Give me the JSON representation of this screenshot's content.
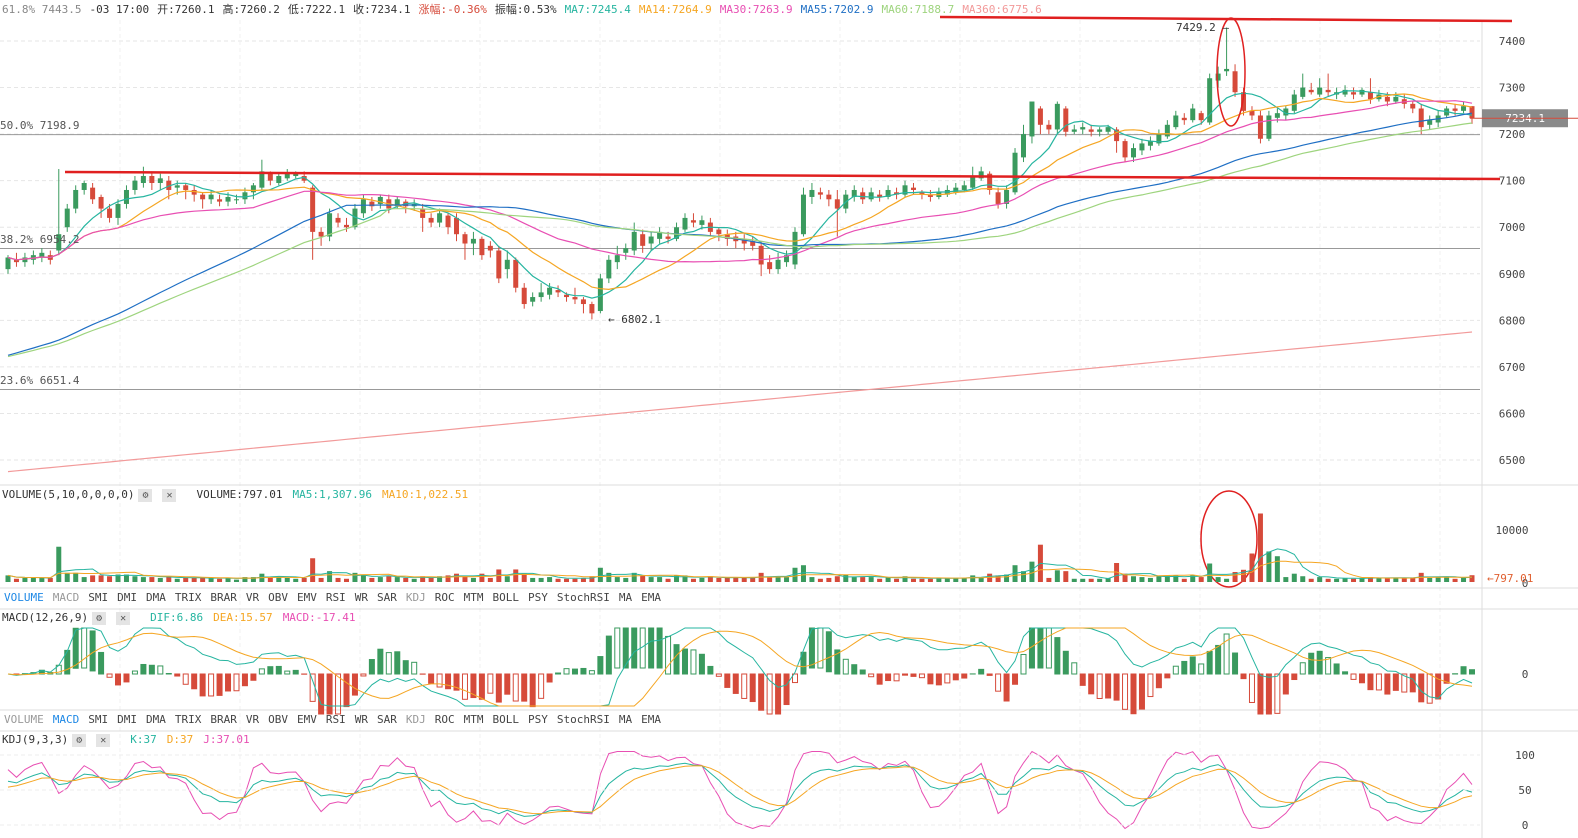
{
  "header": {
    "fib_top": "61.8% 7443.5",
    "time": "-03 17:00",
    "open": "开:7260.1",
    "high": "高:7260.2",
    "low": "低:7222.1",
    "close": "收:7234.1",
    "change": "涨幅:-0.36%",
    "amplitude": "振幅:0.53%",
    "ma7": "MA7:7245.4",
    "ma14": "MA14:7264.9",
    "ma30": "MA30:7263.9",
    "ma55": "MA55:7202.9",
    "ma60": "MA60:7188.7",
    "ma360": "MA360:6775.6"
  },
  "colors": {
    "up": "#3a9a5e",
    "down": "#d64a3a",
    "ma7": "#26b5a0",
    "ma14": "#f5a623",
    "ma30": "#e84fb3",
    "ma55": "#1f6fc4",
    "ma60": "#9ed47e",
    "ma360": "#f29a9a",
    "annotation": "#e02020",
    "macd_neg": "#d64a3a",
    "macd_pos": "#3a9a5e",
    "dif": "#26b5a0",
    "dea": "#f5a623",
    "kdj_j": "#e84fb3"
  },
  "fib_levels": [
    {
      "label": "50.0% 7198.9",
      "value": 7198.9
    },
    {
      "label": "38.2% 6954.2",
      "value": 6954.2
    },
    {
      "label": "23.6% 6651.4",
      "value": 6651.4
    }
  ],
  "price_annotations": {
    "high_label": "7429.2",
    "low_label": "6802.1",
    "current_price": "7234.1",
    "volume_current": "797.01"
  },
  "volume_panel": {
    "title": "VOLUME(5,10,0,0,0,0)",
    "volume": "VOLUME:797.01",
    "ma5": "MA5:1,307.96",
    "ma10": "MA10:1,022.51"
  },
  "macd_panel": {
    "title": "MACD(12,26,9)",
    "dif": "DIF:6.86",
    "dea": "DEA:15.57",
    "macd": "MACD:-17.41"
  },
  "kdj_panel": {
    "title": "KDJ(9,3,3)",
    "k": "K:37",
    "d": "D:37",
    "j": "J:37.01"
  },
  "indicator_tabs": [
    "VOLUME",
    "MACD",
    "SMI",
    "DMI",
    "DMA",
    "TRIX",
    "BRAR",
    "VR",
    "OBV",
    "EMV",
    "RSI",
    "WR",
    "SAR",
    "KDJ",
    "ROC",
    "MTM",
    "BOLL",
    "PSY",
    "StochRSI",
    "MA",
    "EMA"
  ],
  "tab_row_1_active": "VOLUME",
  "tab_row_2_active": "MACD",
  "chart_data": {
    "type": "candlestick",
    "y_axis_ticks": [
      7400,
      7300,
      7200,
      7100,
      7000,
      6900,
      6800,
      6700,
      6600,
      6500
    ],
    "ylim": [
      6460,
      7445
    ],
    "volume_ticks": [
      10000,
      0
    ],
    "macd_ticks": [
      0
    ],
    "kdj_ticks": [
      100,
      50,
      0
    ],
    "candles": [
      [
        6910,
        6935,
        6900,
        6940
      ],
      [
        6930,
        6925,
        6915,
        6945
      ],
      [
        6925,
        6935,
        6915,
        6945
      ],
      [
        6930,
        6940,
        6920,
        6950
      ],
      [
        6935,
        6945,
        6925,
        6955
      ],
      [
        6940,
        6930,
        6920,
        6950
      ],
      [
        6950,
        6985,
        6940,
        7125
      ],
      [
        7000,
        7040,
        6990,
        7050
      ],
      [
        7040,
        7080,
        7030,
        7090
      ],
      [
        7080,
        7095,
        7070,
        7100
      ],
      [
        7085,
        7060,
        7050,
        7095
      ],
      [
        7065,
        7040,
        7020,
        7070
      ],
      [
        7040,
        7020,
        7010,
        7050
      ],
      [
        7020,
        7050,
        7005,
        7060
      ],
      [
        7050,
        7080,
        7040,
        7090
      ],
      [
        7080,
        7100,
        7070,
        7110
      ],
      [
        7095,
        7110,
        7085,
        7130
      ],
      [
        7110,
        7095,
        7080,
        7120
      ],
      [
        7095,
        7105,
        7080,
        7115
      ],
      [
        7100,
        7080,
        7060,
        7110
      ],
      [
        7085,
        7090,
        7070,
        7100
      ],
      [
        7090,
        7080,
        7060,
        7095
      ],
      [
        7080,
        7070,
        7055,
        7090
      ],
      [
        7070,
        7060,
        7040,
        7075
      ],
      [
        7060,
        7070,
        7050,
        7080
      ],
      [
        7060,
        7055,
        7045,
        7070
      ],
      [
        7055,
        7065,
        7045,
        7075
      ],
      [
        7060,
        7060,
        7050,
        7070
      ],
      [
        7060,
        7075,
        7050,
        7085
      ],
      [
        7075,
        7090,
        7060,
        7095
      ],
      [
        7085,
        7120,
        7080,
        7145
      ],
      [
        7115,
        7100,
        7090,
        7120
      ],
      [
        7095,
        7110,
        7090,
        7115
      ],
      [
        7105,
        7115,
        7100,
        7125
      ],
      [
        7110,
        7115,
        7105,
        7120
      ],
      [
        7110,
        7100,
        7095,
        7120
      ],
      [
        7085,
        6990,
        6930,
        7090
      ],
      [
        6990,
        6980,
        6960,
        7000
      ],
      [
        6980,
        7030,
        6970,
        7040
      ],
      [
        7020,
        7010,
        7000,
        7030
      ],
      [
        7005,
        7000,
        6990,
        7020
      ],
      [
        7000,
        7040,
        6995,
        7050
      ],
      [
        7030,
        7060,
        7020,
        7070
      ],
      [
        7055,
        7045,
        7035,
        7065
      ],
      [
        7050,
        7065,
        7040,
        7070
      ],
      [
        7060,
        7040,
        7030,
        7070
      ],
      [
        7045,
        7060,
        7040,
        7065
      ],
      [
        7055,
        7045,
        7030,
        7060
      ],
      [
        7045,
        7050,
        7035,
        7060
      ],
      [
        7040,
        7020,
        6990,
        7050
      ],
      [
        7020,
        7010,
        7000,
        7030
      ],
      [
        7010,
        7030,
        7000,
        7040
      ],
      [
        7025,
        7000,
        6985,
        7030
      ],
      [
        7020,
        6985,
        6970,
        7030
      ],
      [
        6985,
        6965,
        6930,
        6990
      ],
      [
        6965,
        6975,
        6940,
        6990
      ],
      [
        6975,
        6940,
        6930,
        6980
      ],
      [
        6960,
        6950,
        6935,
        6970
      ],
      [
        6950,
        6890,
        6880,
        6960
      ],
      [
        6910,
        6930,
        6890,
        6950
      ],
      [
        6930,
        6870,
        6860,
        6935
      ],
      [
        6870,
        6835,
        6825,
        6880
      ],
      [
        6840,
        6850,
        6830,
        6860
      ],
      [
        6850,
        6860,
        6840,
        6880
      ],
      [
        6855,
        6870,
        6845,
        6880
      ],
      [
        6865,
        6860,
        6850,
        6875
      ],
      [
        6855,
        6850,
        6840,
        6860
      ],
      [
        6850,
        6845,
        6835,
        6870
      ],
      [
        6845,
        6835,
        6815,
        6850
      ],
      [
        6835,
        6815,
        6802,
        6840
      ],
      [
        6820,
        6890,
        6815,
        6900
      ],
      [
        6890,
        6930,
        6880,
        6940
      ],
      [
        6925,
        6940,
        6910,
        6960
      ],
      [
        6945,
        6955,
        6930,
        6965
      ],
      [
        6950,
        6990,
        6940,
        7010
      ],
      [
        6985,
        6960,
        6945,
        6995
      ],
      [
        6965,
        6980,
        6950,
        6990
      ],
      [
        6975,
        6990,
        6965,
        7000
      ],
      [
        6980,
        6975,
        6965,
        6990
      ],
      [
        6975,
        7000,
        6970,
        7010
      ],
      [
        6995,
        7020,
        6990,
        7030
      ],
      [
        7015,
        7010,
        7000,
        7030
      ],
      [
        7005,
        7015,
        6995,
        7025
      ],
      [
        7010,
        6990,
        6980,
        7020
      ],
      [
        6995,
        6985,
        6970,
        7000
      ],
      [
        6985,
        6975,
        6960,
        6995
      ],
      [
        6980,
        6970,
        6955,
        6990
      ],
      [
        6975,
        6965,
        6950,
        6985
      ],
      [
        6970,
        6960,
        6950,
        6980
      ],
      [
        6960,
        6920,
        6895,
        6970
      ],
      [
        6925,
        6910,
        6900,
        6940
      ],
      [
        6910,
        6930,
        6900,
        6945
      ],
      [
        6925,
        6940,
        6915,
        6950
      ],
      [
        6920,
        6990,
        6910,
        7000
      ],
      [
        6985,
        7070,
        6980,
        7085
      ],
      [
        7065,
        7080,
        7050,
        7095
      ],
      [
        7075,
        7070,
        7060,
        7085
      ],
      [
        7070,
        7060,
        7045,
        7080
      ],
      [
        7060,
        7040,
        6980,
        7080
      ],
      [
        7040,
        7070,
        7030,
        7080
      ],
      [
        7065,
        7080,
        7055,
        7090
      ],
      [
        7075,
        7060,
        7050,
        7085
      ],
      [
        7060,
        7075,
        7055,
        7085
      ],
      [
        7070,
        7065,
        7055,
        7080
      ],
      [
        7065,
        7080,
        7060,
        7090
      ],
      [
        7075,
        7070,
        7060,
        7085
      ],
      [
        7070,
        7090,
        7065,
        7100
      ],
      [
        7085,
        7080,
        7070,
        7095
      ],
      [
        7075,
        7070,
        7060,
        7080
      ],
      [
        7070,
        7065,
        7055,
        7080
      ],
      [
        7065,
        7075,
        7060,
        7085
      ],
      [
        7070,
        7080,
        7065,
        7090
      ],
      [
        7075,
        7085,
        7070,
        7095
      ],
      [
        7080,
        7090,
        7075,
        7100
      ],
      [
        7085,
        7110,
        7080,
        7130
      ],
      [
        7105,
        7120,
        7100,
        7130
      ],
      [
        7115,
        7080,
        7070,
        7120
      ],
      [
        7075,
        7050,
        7040,
        7085
      ],
      [
        7050,
        7080,
        7040,
        7090
      ],
      [
        7075,
        7160,
        7070,
        7170
      ],
      [
        7150,
        7200,
        7140,
        7220
      ],
      [
        7195,
        7270,
        7180,
        7265
      ],
      [
        7255,
        7220,
        7200,
        7260
      ],
      [
        7220,
        7210,
        7200,
        7230
      ],
      [
        7210,
        7265,
        7200,
        7270
      ],
      [
        7255,
        7205,
        7195,
        7260
      ],
      [
        7205,
        7210,
        7200,
        7220
      ],
      [
        7210,
        7215,
        7200,
        7225
      ],
      [
        7210,
        7205,
        7195,
        7220
      ],
      [
        7205,
        7210,
        7195,
        7215
      ],
      [
        7205,
        7215,
        7200,
        7220
      ],
      [
        7210,
        7185,
        7160,
        7215
      ],
      [
        7185,
        7150,
        7140,
        7190
      ],
      [
        7150,
        7170,
        7140,
        7180
      ],
      [
        7165,
        7180,
        7155,
        7190
      ],
      [
        7175,
        7185,
        7165,
        7195
      ],
      [
        7180,
        7200,
        7175,
        7210
      ],
      [
        7195,
        7220,
        7190,
        7230
      ],
      [
        7215,
        7240,
        7210,
        7250
      ],
      [
        7235,
        7230,
        7220,
        7245
      ],
      [
        7230,
        7255,
        7225,
        7265
      ],
      [
        7245,
        7230,
        7220,
        7250
      ],
      [
        7225,
        7320,
        7220,
        7330
      ],
      [
        7315,
        7330,
        7300,
        7345
      ],
      [
        7335,
        7340,
        7325,
        7429
      ],
      [
        7335,
        7290,
        7280,
        7350
      ],
      [
        7290,
        7250,
        7240,
        7300
      ],
      [
        7250,
        7240,
        7230,
        7260
      ],
      [
        7240,
        7190,
        7180,
        7250
      ],
      [
        7190,
        7240,
        7185,
        7250
      ],
      [
        7235,
        7245,
        7225,
        7255
      ],
      [
        7240,
        7255,
        7230,
        7260
      ],
      [
        7250,
        7285,
        7245,
        7295
      ],
      [
        7280,
        7300,
        7275,
        7330
      ],
      [
        7295,
        7290,
        7285,
        7310
      ],
      [
        7285,
        7300,
        7280,
        7320
      ],
      [
        7295,
        7290,
        7280,
        7330
      ],
      [
        7285,
        7290,
        7275,
        7300
      ],
      [
        7285,
        7295,
        7280,
        7305
      ],
      [
        7290,
        7285,
        7275,
        7300
      ],
      [
        7285,
        7295,
        7280,
        7300
      ],
      [
        7290,
        7275,
        7265,
        7320
      ],
      [
        7275,
        7285,
        7270,
        7295
      ],
      [
        7280,
        7270,
        7260,
        7290
      ],
      [
        7270,
        7280,
        7265,
        7290
      ],
      [
        7275,
        7265,
        7255,
        7285
      ],
      [
        7265,
        7255,
        7245,
        7270
      ],
      [
        7255,
        7215,
        7200,
        7265
      ],
      [
        7220,
        7230,
        7210,
        7240
      ],
      [
        7225,
        7240,
        7215,
        7250
      ],
      [
        7240,
        7255,
        7235,
        7260
      ],
      [
        7255,
        7250,
        7240,
        7265
      ],
      [
        7250,
        7260,
        7245,
        7270
      ],
      [
        7260,
        7234,
        7222,
        7260
      ]
    ]
  }
}
